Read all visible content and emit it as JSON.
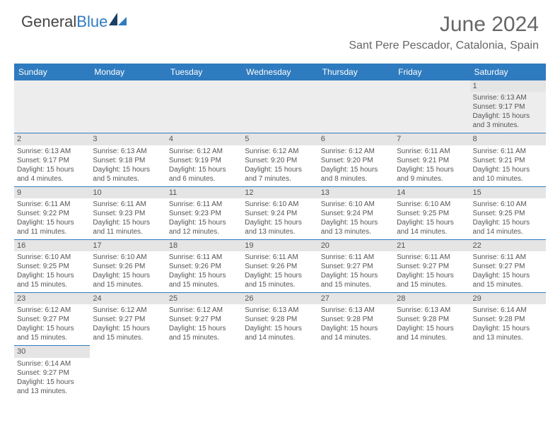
{
  "logo": {
    "text_dark": "General",
    "text_blue": "Blue"
  },
  "title": "June 2024",
  "location": "Sant Pere Pescador, Catalonia, Spain",
  "colors": {
    "header_bg": "#2f7bbf",
    "header_text": "#ffffff",
    "cell_border": "#2f7bbf",
    "daynum_bg": "#e5e5e5",
    "body_text": "#555555"
  },
  "day_headers": [
    "Sunday",
    "Monday",
    "Tuesday",
    "Wednesday",
    "Thursday",
    "Friday",
    "Saturday"
  ],
  "weeks": [
    [
      null,
      null,
      null,
      null,
      null,
      null,
      {
        "n": "1",
        "sr": "Sunrise: 6:13 AM",
        "ss": "Sunset: 9:17 PM",
        "d1": "Daylight: 15 hours",
        "d2": "and 3 minutes."
      }
    ],
    [
      {
        "n": "2",
        "sr": "Sunrise: 6:13 AM",
        "ss": "Sunset: 9:17 PM",
        "d1": "Daylight: 15 hours",
        "d2": "and 4 minutes."
      },
      {
        "n": "3",
        "sr": "Sunrise: 6:13 AM",
        "ss": "Sunset: 9:18 PM",
        "d1": "Daylight: 15 hours",
        "d2": "and 5 minutes."
      },
      {
        "n": "4",
        "sr": "Sunrise: 6:12 AM",
        "ss": "Sunset: 9:19 PM",
        "d1": "Daylight: 15 hours",
        "d2": "and 6 minutes."
      },
      {
        "n": "5",
        "sr": "Sunrise: 6:12 AM",
        "ss": "Sunset: 9:20 PM",
        "d1": "Daylight: 15 hours",
        "d2": "and 7 minutes."
      },
      {
        "n": "6",
        "sr": "Sunrise: 6:12 AM",
        "ss": "Sunset: 9:20 PM",
        "d1": "Daylight: 15 hours",
        "d2": "and 8 minutes."
      },
      {
        "n": "7",
        "sr": "Sunrise: 6:11 AM",
        "ss": "Sunset: 9:21 PM",
        "d1": "Daylight: 15 hours",
        "d2": "and 9 minutes."
      },
      {
        "n": "8",
        "sr": "Sunrise: 6:11 AM",
        "ss": "Sunset: 9:21 PM",
        "d1": "Daylight: 15 hours",
        "d2": "and 10 minutes."
      }
    ],
    [
      {
        "n": "9",
        "sr": "Sunrise: 6:11 AM",
        "ss": "Sunset: 9:22 PM",
        "d1": "Daylight: 15 hours",
        "d2": "and 11 minutes."
      },
      {
        "n": "10",
        "sr": "Sunrise: 6:11 AM",
        "ss": "Sunset: 9:23 PM",
        "d1": "Daylight: 15 hours",
        "d2": "and 11 minutes."
      },
      {
        "n": "11",
        "sr": "Sunrise: 6:11 AM",
        "ss": "Sunset: 9:23 PM",
        "d1": "Daylight: 15 hours",
        "d2": "and 12 minutes."
      },
      {
        "n": "12",
        "sr": "Sunrise: 6:10 AM",
        "ss": "Sunset: 9:24 PM",
        "d1": "Daylight: 15 hours",
        "d2": "and 13 minutes."
      },
      {
        "n": "13",
        "sr": "Sunrise: 6:10 AM",
        "ss": "Sunset: 9:24 PM",
        "d1": "Daylight: 15 hours",
        "d2": "and 13 minutes."
      },
      {
        "n": "14",
        "sr": "Sunrise: 6:10 AM",
        "ss": "Sunset: 9:25 PM",
        "d1": "Daylight: 15 hours",
        "d2": "and 14 minutes."
      },
      {
        "n": "15",
        "sr": "Sunrise: 6:10 AM",
        "ss": "Sunset: 9:25 PM",
        "d1": "Daylight: 15 hours",
        "d2": "and 14 minutes."
      }
    ],
    [
      {
        "n": "16",
        "sr": "Sunrise: 6:10 AM",
        "ss": "Sunset: 9:25 PM",
        "d1": "Daylight: 15 hours",
        "d2": "and 15 minutes."
      },
      {
        "n": "17",
        "sr": "Sunrise: 6:10 AM",
        "ss": "Sunset: 9:26 PM",
        "d1": "Daylight: 15 hours",
        "d2": "and 15 minutes."
      },
      {
        "n": "18",
        "sr": "Sunrise: 6:11 AM",
        "ss": "Sunset: 9:26 PM",
        "d1": "Daylight: 15 hours",
        "d2": "and 15 minutes."
      },
      {
        "n": "19",
        "sr": "Sunrise: 6:11 AM",
        "ss": "Sunset: 9:26 PM",
        "d1": "Daylight: 15 hours",
        "d2": "and 15 minutes."
      },
      {
        "n": "20",
        "sr": "Sunrise: 6:11 AM",
        "ss": "Sunset: 9:27 PM",
        "d1": "Daylight: 15 hours",
        "d2": "and 15 minutes."
      },
      {
        "n": "21",
        "sr": "Sunrise: 6:11 AM",
        "ss": "Sunset: 9:27 PM",
        "d1": "Daylight: 15 hours",
        "d2": "and 15 minutes."
      },
      {
        "n": "22",
        "sr": "Sunrise: 6:11 AM",
        "ss": "Sunset: 9:27 PM",
        "d1": "Daylight: 15 hours",
        "d2": "and 15 minutes."
      }
    ],
    [
      {
        "n": "23",
        "sr": "Sunrise: 6:12 AM",
        "ss": "Sunset: 9:27 PM",
        "d1": "Daylight: 15 hours",
        "d2": "and 15 minutes."
      },
      {
        "n": "24",
        "sr": "Sunrise: 6:12 AM",
        "ss": "Sunset: 9:27 PM",
        "d1": "Daylight: 15 hours",
        "d2": "and 15 minutes."
      },
      {
        "n": "25",
        "sr": "Sunrise: 6:12 AM",
        "ss": "Sunset: 9:27 PM",
        "d1": "Daylight: 15 hours",
        "d2": "and 15 minutes."
      },
      {
        "n": "26",
        "sr": "Sunrise: 6:13 AM",
        "ss": "Sunset: 9:28 PM",
        "d1": "Daylight: 15 hours",
        "d2": "and 14 minutes."
      },
      {
        "n": "27",
        "sr": "Sunrise: 6:13 AM",
        "ss": "Sunset: 9:28 PM",
        "d1": "Daylight: 15 hours",
        "d2": "and 14 minutes."
      },
      {
        "n": "28",
        "sr": "Sunrise: 6:13 AM",
        "ss": "Sunset: 9:28 PM",
        "d1": "Daylight: 15 hours",
        "d2": "and 14 minutes."
      },
      {
        "n": "29",
        "sr": "Sunrise: 6:14 AM",
        "ss": "Sunset: 9:28 PM",
        "d1": "Daylight: 15 hours",
        "d2": "and 13 minutes."
      }
    ],
    [
      {
        "n": "30",
        "sr": "Sunrise: 6:14 AM",
        "ss": "Sunset: 9:27 PM",
        "d1": "Daylight: 15 hours",
        "d2": "and 13 minutes."
      },
      null,
      null,
      null,
      null,
      null,
      null
    ]
  ]
}
